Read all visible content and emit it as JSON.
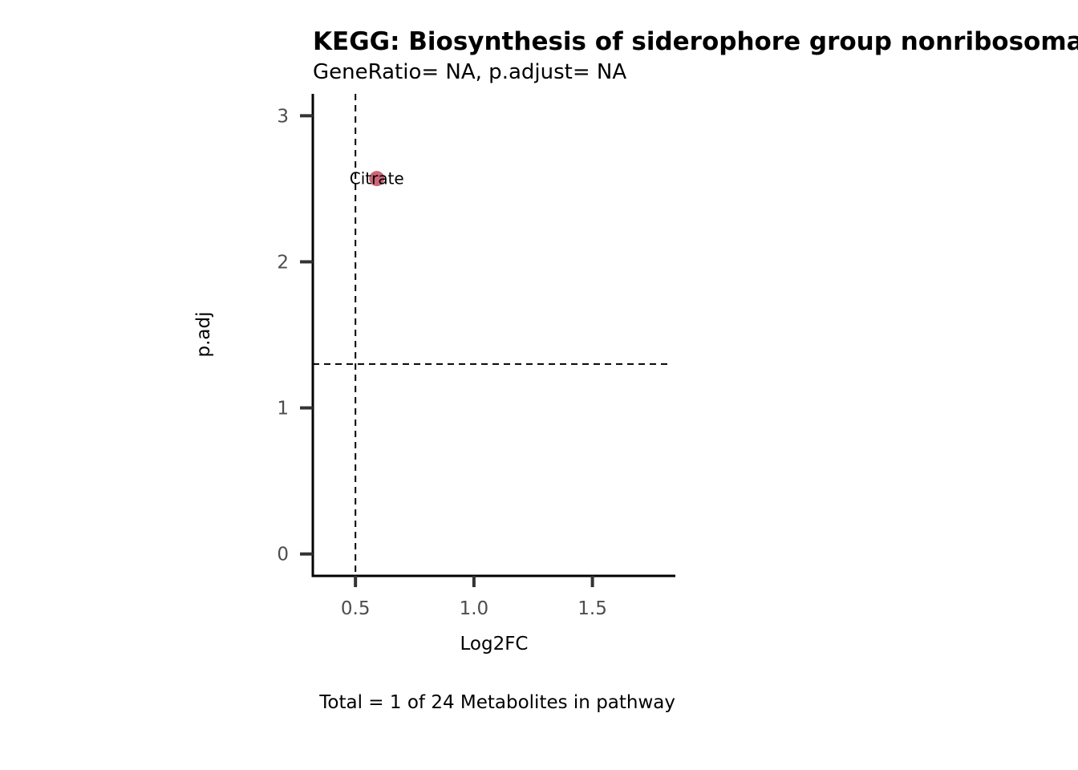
{
  "chart_data": {
    "type": "scatter",
    "title": "KEGG: Biosynthesis of siderophore group nonribosomal peptides",
    "subtitle": "GeneRatio= NA, p.adjust= NA",
    "xlabel": "Log2FC",
    "ylabel": "p.adj",
    "caption": "Total = 1 of 24 Metabolites in pathway",
    "xlim": [
      0.32,
      1.85
    ],
    "ylim": [
      -0.15,
      3.15
    ],
    "xticks": [
      {
        "value": 0.5,
        "label": "0.5"
      },
      {
        "value": 1.0,
        "label": "1.0"
      },
      {
        "value": 1.5,
        "label": "1.5"
      }
    ],
    "yticks": [
      {
        "value": 0,
        "label": "0"
      },
      {
        "value": 1,
        "label": "1"
      },
      {
        "value": 2,
        "label": "2"
      },
      {
        "value": 3,
        "label": "3"
      }
    ],
    "reference_lines": {
      "vertical_x": 0.5,
      "horizontal_y": 1.3
    },
    "points": [
      {
        "x": 0.59,
        "y": 2.57,
        "label": "Citrate",
        "color": "#cc6677"
      }
    ],
    "grid": false,
    "legend": "none"
  }
}
